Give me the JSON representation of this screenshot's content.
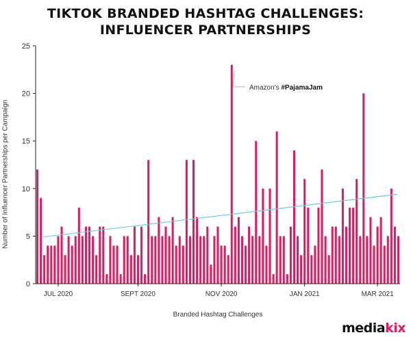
{
  "header": {
    "title_line1": "TIKTOK BRANDED HASHTAG CHALLENGES:",
    "title_line2": "INFLUENCER PARTNERSHIPS"
  },
  "brand": {
    "part1": "media",
    "part2": "kix"
  },
  "colors": {
    "bar": "#e5195e",
    "trend": "#5fd0de",
    "axis": "#222222",
    "text": "#333333"
  },
  "chart_data": {
    "type": "bar",
    "title": "TIKTOK BRANDED HASHTAG CHALLENGES: INFLUENCER PARTNERSHIPS",
    "xlabel": "Branded Hashtag Challenges",
    "ylabel": "Number of Influencer Partnerships per Campaign",
    "ylim": [
      0,
      25
    ],
    "yticks": [
      0,
      5,
      10,
      15,
      20,
      25
    ],
    "x_tick_labels": [
      {
        "label": "JUL 2020",
        "index": 6
      },
      {
        "label": "SEPT 2020",
        "index": 29
      },
      {
        "label": "NOV 2020",
        "index": 53
      },
      {
        "label": "JAN 2021",
        "index": 77
      },
      {
        "label": "MAR 2021",
        "index": 98
      }
    ],
    "values": [
      12,
      9,
      3,
      4,
      4,
      4,
      5,
      6,
      3,
      5,
      4,
      5,
      8,
      5,
      6,
      6,
      5,
      3,
      6,
      6,
      1,
      5,
      4,
      4,
      1,
      5,
      5,
      3,
      6,
      3,
      6,
      1,
      13,
      5,
      5,
      7,
      5,
      6,
      5,
      7,
      4,
      5,
      4,
      13,
      5,
      13,
      7,
      5,
      5,
      6,
      2,
      5,
      6,
      4,
      4,
      3,
      23,
      6,
      7,
      5,
      4,
      6,
      5,
      15,
      5,
      10,
      4,
      10,
      1,
      16,
      5,
      5,
      1,
      6,
      14,
      5,
      3,
      11,
      8,
      3,
      4,
      8,
      12,
      5,
      3,
      6,
      6,
      5,
      10,
      6,
      8,
      8,
      11,
      5,
      20,
      5,
      7,
      4,
      6,
      7,
      4,
      5,
      10,
      6,
      5
    ],
    "trendline": {
      "start": 4.9,
      "end": 9.4
    },
    "annotation": {
      "prefix": "Amazon's ",
      "tag": "#PajamaJam",
      "bar_index": 56
    }
  }
}
